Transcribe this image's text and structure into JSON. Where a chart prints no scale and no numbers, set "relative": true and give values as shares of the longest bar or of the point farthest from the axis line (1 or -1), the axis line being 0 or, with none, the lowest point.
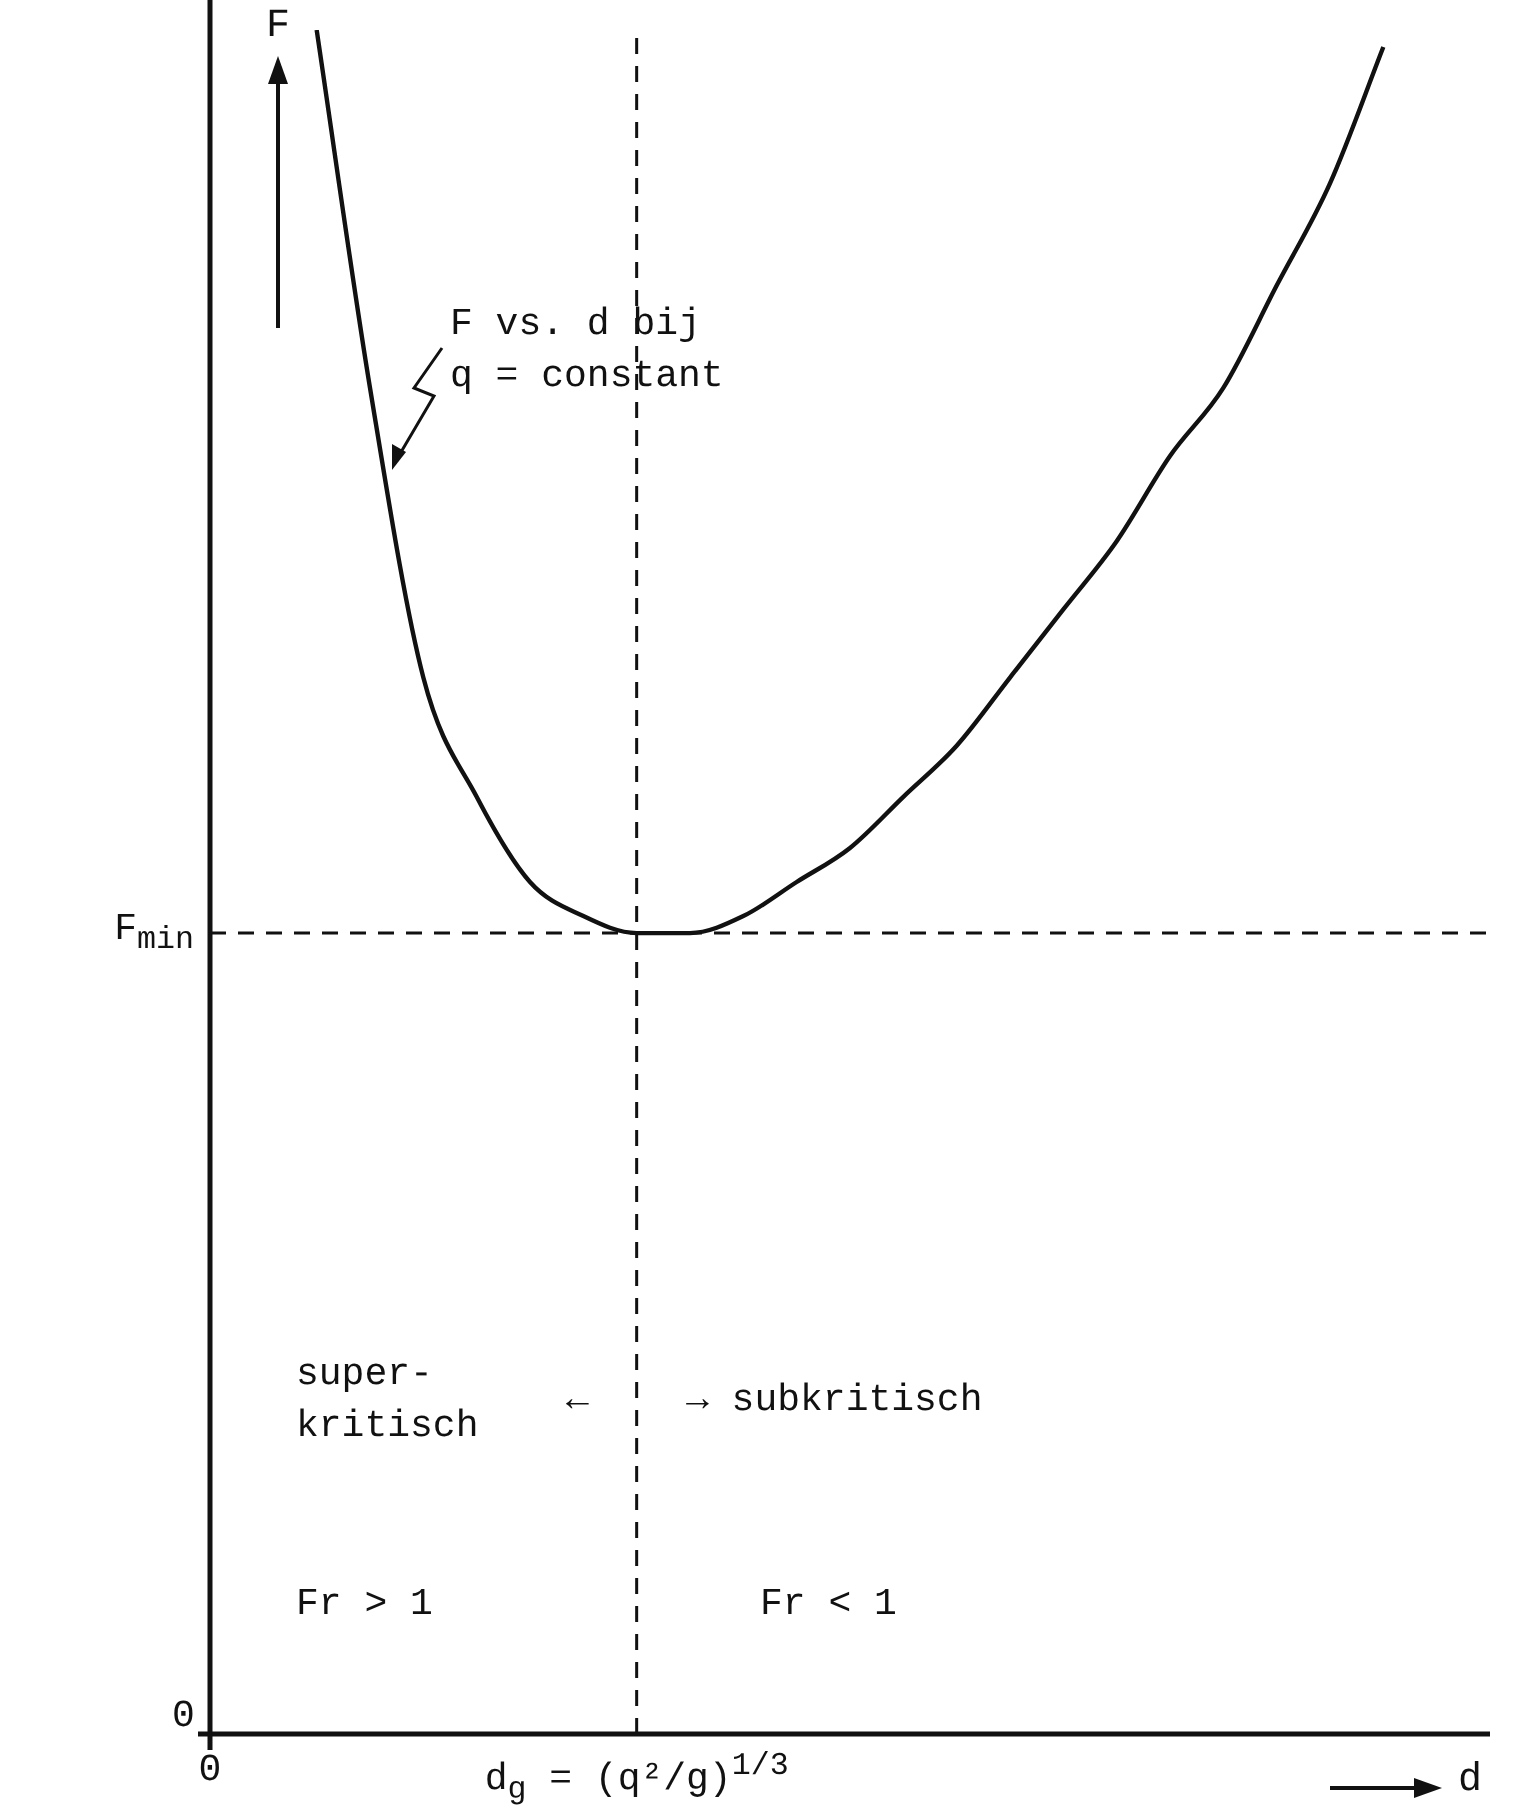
{
  "chart_data": {
    "type": "line",
    "marker": "none",
    "line_style": "solid",
    "relative": true,
    "xlabel": "d",
    "ylabel": "F",
    "categories": [
      "0",
      null,
      null,
      null,
      null,
      null,
      null,
      null,
      "d$_{g}$ = (q²/g)$^{1/3}$",
      null,
      null,
      null,
      null,
      null,
      null,
      null,
      null,
      null,
      null,
      null,
      null,
      null,
      null,
      null,
      null
    ],
    "series": [
      {
        "color": "#111111",
        "values": [
          null,
          null,
          1.0,
          0.79,
          0.62,
          0.55,
          0.5,
          0.48,
          0.47,
          0.47,
          0.48,
          0.5,
          0.52,
          0.55,
          0.58,
          0.62,
          0.66,
          0.7,
          0.75,
          0.79,
          0.85,
          0.91,
          0.99,
          null,
          null
        ]
      }
    ],
    "ref_lines": [
      {
        "axis": "y",
        "value": 0.47,
        "label": "F$_{min}$",
        "line_style": "dashed",
        "color": "#111111"
      },
      {
        "axis": "x",
        "value": "d$_{g}$ = (q²/g)$^{1/3}$",
        "line_style": "dashed",
        "color": "#111111"
      }
    ],
    "annotations": [
      "F vs. d bij\nq = constant",
      "super-\nkritisch",
      "←",
      "→ subkritisch",
      "Fr > 1",
      "Fr < 1",
      "0"
    ]
  }
}
